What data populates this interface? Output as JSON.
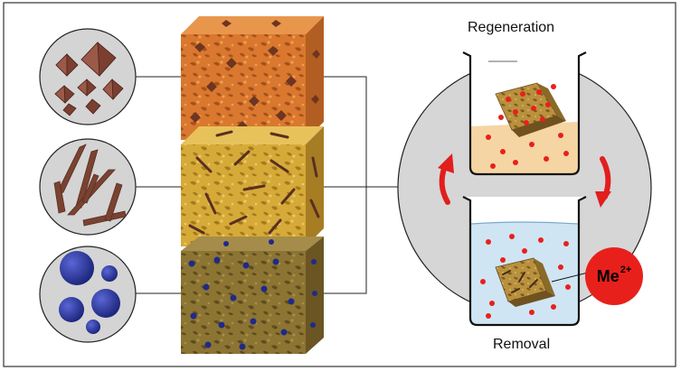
{
  "labels": {
    "regeneration": "Regeneration",
    "removal": "Removal"
  },
  "ion": {
    "symbol": "Me",
    "charge": "2+"
  },
  "colors": {
    "cube_orange": "#d9782e",
    "cube_yellow": "#d6aa38",
    "cube_olive": "#8c7433",
    "octahedra": "#7a3f30",
    "rods": "#6b3a2c",
    "spheres": "#24308f",
    "cycle_arrow": "#e21e1e",
    "cycle_disc": "#d6d6d6",
    "ion_red": "#e8201c",
    "water_blue": "#cfe5f4",
    "regen_liquid": "#f5d5a3"
  },
  "icons": [
    "octahedra-particles-icon",
    "rod-particles-icon",
    "sphere-particles-icon",
    "beaker-icon",
    "cycle-arrow-icon"
  ]
}
